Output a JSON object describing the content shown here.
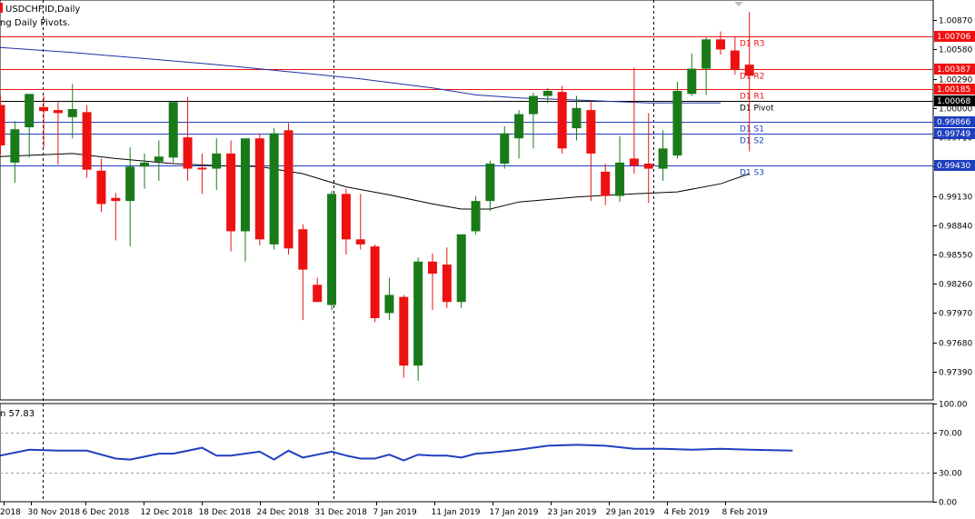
{
  "header": {
    "symbol_title": "USDCHF.ID,Daily",
    "indicator_title": "ng Daily Pivots."
  },
  "oscillator": {
    "label": "n 57.83",
    "scale": [
      "100.00",
      "70.00",
      "30.00",
      "0.00"
    ],
    "levels": [
      70,
      30
    ],
    "line_color": "#1f3fbf"
  },
  "colors": {
    "bull": "#1a7a1a",
    "bear": "#ee1111",
    "pivot_resistance": "#ee1111",
    "pivot_pivot": "#000000",
    "pivot_support": "#1f3fbf",
    "ma_slow": "#1f2fa0",
    "ma_fast": "#000000"
  },
  "chart_data": [
    {
      "type": "candlestick",
      "title": "USDCHF.ID,Daily",
      "x_labels": [
        "2018",
        "30 Nov 2018",
        "6 Dec 2018",
        "12 Dec 2018",
        "18 Dec 2018",
        "24 Dec 2018",
        "31 Dec 2018",
        "7 Jan 2019",
        "11 Jan 2019",
        "17 Jan 2019",
        "23 Jan 2019",
        "29 Jan 2019",
        "4 Feb 2019",
        "8 Feb 2019"
      ],
      "y_ticks": [
        "1.00870",
        "1.00580",
        "1.00290",
        "1.00000",
        "0.99710",
        "0.99420",
        "0.99130",
        "0.98840",
        "0.98550",
        "0.98260",
        "0.97970",
        "0.97680",
        "0.97390"
      ],
      "ylim": [
        0.9711,
        1.0107
      ],
      "period_separators": [
        "30 Nov 2018",
        "31 Dec 2018",
        "31 Jan 2019"
      ],
      "candles": [
        {
          "o": 1.0003,
          "h": 1.0012,
          "l": 0.9954,
          "c": 0.9963
        },
        {
          "o": 0.9946,
          "h": 0.9987,
          "l": 0.9926,
          "c": 0.9979
        },
        {
          "o": 0.9981,
          "h": 1.0012,
          "l": 0.9951,
          "c": 1.0014
        },
        {
          "o": 1.0001,
          "h": 1.0012,
          "l": 0.9961,
          "c": 0.9997
        },
        {
          "o": 0.9998,
          "h": 1.0006,
          "l": 0.9944,
          "c": 0.9995
        },
        {
          "o": 0.9991,
          "h": 1.0024,
          "l": 0.997,
          "c": 0.9999
        },
        {
          "o": 0.9996,
          "h": 1.0003,
          "l": 0.9931,
          "c": 0.9939
        },
        {
          "o": 0.9938,
          "h": 0.995,
          "l": 0.9897,
          "c": 0.9905
        },
        {
          "o": 0.9911,
          "h": 0.9916,
          "l": 0.9869,
          "c": 0.9908
        },
        {
          "o": 0.9908,
          "h": 0.9961,
          "l": 0.9863,
          "c": 0.9942
        },
        {
          "o": 0.9942,
          "h": 0.9955,
          "l": 0.992,
          "c": 0.9946
        },
        {
          "o": 0.9947,
          "h": 0.9968,
          "l": 0.9928,
          "c": 0.9952
        },
        {
          "o": 0.9951,
          "h": 1.0007,
          "l": 0.9946,
          "c": 1.0006
        },
        {
          "o": 0.9971,
          "h": 1.0011,
          "l": 0.9928,
          "c": 0.994
        },
        {
          "o": 0.9941,
          "h": 0.9955,
          "l": 0.9915,
          "c": 0.994
        },
        {
          "o": 0.994,
          "h": 0.997,
          "l": 0.9919,
          "c": 0.9955
        },
        {
          "o": 0.9955,
          "h": 0.9968,
          "l": 0.9858,
          "c": 0.9878
        },
        {
          "o": 0.9878,
          "h": 0.9968,
          "l": 0.9848,
          "c": 0.997
        },
        {
          "o": 0.997,
          "h": 0.9975,
          "l": 0.9864,
          "c": 0.987
        },
        {
          "o": 0.9865,
          "h": 0.998,
          "l": 0.986,
          "c": 0.9975
        },
        {
          "o": 0.9978,
          "h": 0.9985,
          "l": 0.9855,
          "c": 0.9861
        },
        {
          "o": 0.988,
          "h": 0.9885,
          "l": 0.979,
          "c": 0.984
        },
        {
          "o": 0.9825,
          "h": 0.9832,
          "l": 0.9808,
          "c": 0.9808
        },
        {
          "o": 0.9805,
          "h": 0.9918,
          "l": 0.98,
          "c": 0.9915
        },
        {
          "o": 0.9915,
          "h": 0.992,
          "l": 0.9855,
          "c": 0.987
        },
        {
          "o": 0.987,
          "h": 0.9915,
          "l": 0.986,
          "c": 0.9865
        },
        {
          "o": 0.9863,
          "h": 0.9865,
          "l": 0.9788,
          "c": 0.9792
        },
        {
          "o": 0.9797,
          "h": 0.9832,
          "l": 0.979,
          "c": 0.9815
        },
        {
          "o": 0.9813,
          "h": 0.9815,
          "l": 0.9733,
          "c": 0.9745
        },
        {
          "o": 0.9745,
          "h": 0.9852,
          "l": 0.973,
          "c": 0.9848
        },
        {
          "o": 0.9848,
          "h": 0.9856,
          "l": 0.98,
          "c": 0.9836
        },
        {
          "o": 0.9845,
          "h": 0.9862,
          "l": 0.9802,
          "c": 0.9808
        },
        {
          "o": 0.9808,
          "h": 0.9872,
          "l": 0.9802,
          "c": 0.9875
        },
        {
          "o": 0.9878,
          "h": 0.9913,
          "l": 0.9875,
          "c": 0.9908
        },
        {
          "o": 0.9908,
          "h": 0.9948,
          "l": 0.9898,
          "c": 0.9945
        },
        {
          "o": 0.9945,
          "h": 0.9982,
          "l": 0.994,
          "c": 0.9975
        },
        {
          "o": 0.997,
          "h": 0.9998,
          "l": 0.995,
          "c": 0.9994
        },
        {
          "o": 0.9994,
          "h": 1.0015,
          "l": 0.996,
          "c": 1.0012
        },
        {
          "o": 1.0012,
          "h": 1.002,
          "l": 1.0005,
          "c": 1.0017
        },
        {
          "o": 1.0016,
          "h": 1.0022,
          "l": 0.9955,
          "c": 0.996
        },
        {
          "o": 0.998,
          "h": 1.0012,
          "l": 0.9968,
          "c": 1.0
        },
        {
          "o": 0.9998,
          "h": 1.0007,
          "l": 0.9908,
          "c": 0.9955
        },
        {
          "o": 0.9937,
          "h": 0.9945,
          "l": 0.9904,
          "c": 0.9913
        },
        {
          "o": 0.9913,
          "h": 0.9972,
          "l": 0.9907,
          "c": 0.9946
        },
        {
          "o": 0.995,
          "h": 1.004,
          "l": 0.9935,
          "c": 0.9943
        },
        {
          "o": 0.9945,
          "h": 0.9995,
          "l": 0.9906,
          "c": 0.994
        },
        {
          "o": 0.994,
          "h": 0.9978,
          "l": 0.9928,
          "c": 0.996
        },
        {
          "o": 0.9953,
          "h": 1.0026,
          "l": 0.995,
          "c": 1.0017
        },
        {
          "o": 1.0014,
          "h": 1.0054,
          "l": 1.0012,
          "c": 1.0039
        },
        {
          "o": 1.0039,
          "h": 1.007,
          "l": 1.0013,
          "c": 1.0068
        },
        {
          "o": 1.0068,
          "h": 1.0076,
          "l": 1.0053,
          "c": 1.0058
        },
        {
          "o": 1.0057,
          "h": 1.007,
          "l": 1.0033,
          "c": 1.0038
        },
        {
          "o": 1.0043,
          "h": 1.0095,
          "l": 0.9957,
          "c": 1.0032
        }
      ],
      "pivot_levels": [
        {
          "name": "D1 R3",
          "value": 1.00706,
          "label": "1.00706",
          "kind": "resistance"
        },
        {
          "name": "D1 R2",
          "value": 1.00387,
          "label": "1.00387",
          "kind": "resistance"
        },
        {
          "name": "D1 R1",
          "value": 1.00185,
          "label": "1.00185",
          "kind": "resistance"
        },
        {
          "name": "D1 Pivot",
          "value": 1.00068,
          "label": "1.00068",
          "kind": "pivot"
        },
        {
          "name": "D1 S1",
          "value": 0.99866,
          "label": "0.99866",
          "kind": "support"
        },
        {
          "name": "D1 S2",
          "value": 0.99749,
          "label": "0.99749",
          "kind": "support"
        },
        {
          "name": "D1 S3",
          "value": 0.9943,
          "label": "0.99430",
          "kind": "support"
        }
      ],
      "ma_slow": [
        [
          0,
          1.006
        ],
        [
          5,
          1.0055
        ],
        [
          10,
          1.0049
        ],
        [
          15,
          1.0043
        ],
        [
          20,
          1.0036
        ],
        [
          25,
          1.0029
        ],
        [
          30,
          1.002
        ],
        [
          33,
          1.0013
        ],
        [
          36,
          1.001
        ],
        [
          40,
          1.0008
        ],
        [
          45,
          1.0005
        ],
        [
          50,
          1.0005
        ]
      ],
      "ma_fast": [
        [
          0,
          0.9952
        ],
        [
          5,
          0.9955
        ],
        [
          8,
          0.995
        ],
        [
          12,
          0.9945
        ],
        [
          15,
          0.9943
        ],
        [
          18,
          0.9942
        ],
        [
          21,
          0.9935
        ],
        [
          24,
          0.9922
        ],
        [
          27,
          0.9914
        ],
        [
          30,
          0.9905
        ],
        [
          32,
          0.99
        ],
        [
          34,
          0.99
        ],
        [
          36,
          0.9907
        ],
        [
          40,
          0.9912
        ],
        [
          44,
          0.9915
        ],
        [
          47,
          0.9917
        ],
        [
          50,
          0.9925
        ],
        [
          52,
          0.9935
        ]
      ]
    },
    {
      "type": "line",
      "title": "",
      "ylim": [
        0,
        100
      ],
      "values": [
        [
          0,
          47
        ],
        [
          2,
          53
        ],
        [
          4,
          52
        ],
        [
          6,
          52
        ],
        [
          8,
          44
        ],
        [
          9,
          43
        ],
        [
          11,
          49
        ],
        [
          12,
          49
        ],
        [
          14,
          55
        ],
        [
          15,
          47
        ],
        [
          16,
          47
        ],
        [
          18,
          51
        ],
        [
          19,
          43
        ],
        [
          20,
          52
        ],
        [
          21,
          45
        ],
        [
          22,
          48
        ],
        [
          23,
          51
        ],
        [
          24,
          47
        ],
        [
          25,
          44
        ],
        [
          26,
          44
        ],
        [
          27,
          48
        ],
        [
          28,
          42
        ],
        [
          29,
          48
        ],
        [
          30,
          47
        ],
        [
          31,
          47
        ],
        [
          32,
          45
        ],
        [
          33,
          49
        ],
        [
          34,
          50
        ],
        [
          36,
          53
        ],
        [
          38,
          57
        ],
        [
          40,
          58
        ],
        [
          42,
          57
        ],
        [
          44,
          54
        ],
        [
          46,
          54
        ],
        [
          48,
          53
        ],
        [
          50,
          54
        ],
        [
          52,
          53
        ],
        [
          55,
          52
        ]
      ]
    }
  ]
}
